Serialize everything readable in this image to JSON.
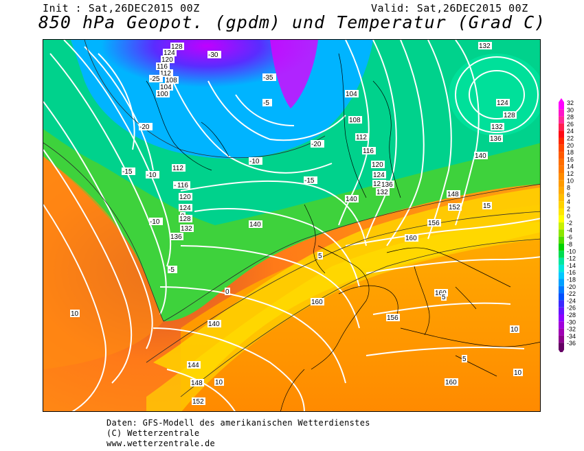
{
  "header": {
    "init": "Init : Sat,26DEC2015 00Z",
    "valid": "Valid: Sat,26DEC2015 00Z",
    "title": "850 hPa Geopot. (gpdm) und Temperatur (Grad C)"
  },
  "legend": {
    "values": [
      "32",
      "30",
      "28",
      "26",
      "24",
      "22",
      "20",
      "18",
      "16",
      "14",
      "12",
      "10",
      "8",
      "6",
      "4",
      "2",
      "0",
      "-2",
      "-4",
      "-6",
      "-8",
      "-10",
      "-12",
      "-14",
      "-16",
      "-18",
      "-20",
      "-22",
      "-24",
      "-26",
      "-28",
      "-30",
      "-32",
      "-34",
      "-36"
    ],
    "colors": [
      "#ff00ff",
      "#ff14c8",
      "#ff2896",
      "#ff1e50",
      "#ff0a14",
      "#ff2800",
      "#ff4600",
      "#ff5a00",
      "#ff6e00",
      "#ff7800",
      "#ff8c00",
      "#ff9b00",
      "#ffaa00",
      "#ffbe00",
      "#ffd200",
      "#ffe600",
      "#ffff00",
      "#c8f000",
      "#8ce600",
      "#50dc00",
      "#00d200",
      "#00dc50",
      "#00e6a0",
      "#00e6dc",
      "#00c8ff",
      "#00a0ff",
      "#0078ff",
      "#0050ff",
      "#3c28ff",
      "#6414ff",
      "#8c00ff",
      "#a000dc",
      "#a000b4",
      "#8c008c",
      "#640064"
    ]
  },
  "map_labels": [
    {
      "t": "128"
    },
    {
      "t": "124"
    },
    {
      "t": "120"
    },
    {
      "t": "116"
    },
    {
      "t": "112"
    },
    {
      "t": "108"
    },
    {
      "t": "104"
    },
    {
      "t": "100"
    },
    {
      "t": "-25"
    },
    {
      "t": "-30"
    },
    {
      "t": "-35"
    },
    {
      "t": "-20"
    },
    {
      "t": "-15"
    },
    {
      "t": "-10"
    },
    {
      "t": "-5"
    },
    {
      "t": "0"
    },
    {
      "t": "112"
    },
    {
      "t": "116"
    },
    {
      "t": "120"
    },
    {
      "t": "124"
    },
    {
      "t": "128"
    },
    {
      "t": "132"
    },
    {
      "t": "136"
    },
    {
      "t": "140"
    },
    {
      "t": "104"
    },
    {
      "t": "108"
    },
    {
      "t": "112"
    },
    {
      "t": "116"
    },
    {
      "t": "120"
    },
    {
      "t": "124"
    },
    {
      "t": "128"
    },
    {
      "t": "132"
    },
    {
      "t": "136"
    },
    {
      "t": "140"
    },
    {
      "t": "132"
    },
    {
      "t": "124"
    },
    {
      "t": "128"
    },
    {
      "t": "132"
    },
    {
      "t": "136"
    },
    {
      "t": "140"
    },
    {
      "t": "148"
    },
    {
      "t": "152"
    },
    {
      "t": "156"
    },
    {
      "t": "160"
    },
    {
      "t": "140"
    },
    {
      "t": "144"
    },
    {
      "t": "148"
    },
    {
      "t": "152"
    },
    {
      "t": "160"
    },
    {
      "t": "160"
    },
    {
      "t": "156"
    },
    {
      "t": "160"
    },
    {
      "t": "-5"
    },
    {
      "t": "-10"
    },
    {
      "t": "-15"
    },
    {
      "t": "-20"
    },
    {
      "t": "-10"
    },
    {
      "t": "-5"
    },
    {
      "t": "0"
    },
    {
      "t": "5"
    },
    {
      "t": "10"
    },
    {
      "t": "5"
    },
    {
      "t": "10"
    },
    {
      "t": "5"
    },
    {
      "t": "10"
    },
    {
      "t": "15"
    },
    {
      "t": "10"
    }
  ],
  "footer": {
    "line1": "Daten: GFS-Modell des amerikanischen Wetterdienstes",
    "line2": "(C) Wetterzentrale",
    "line3": "www.wetterzentrale.de"
  }
}
